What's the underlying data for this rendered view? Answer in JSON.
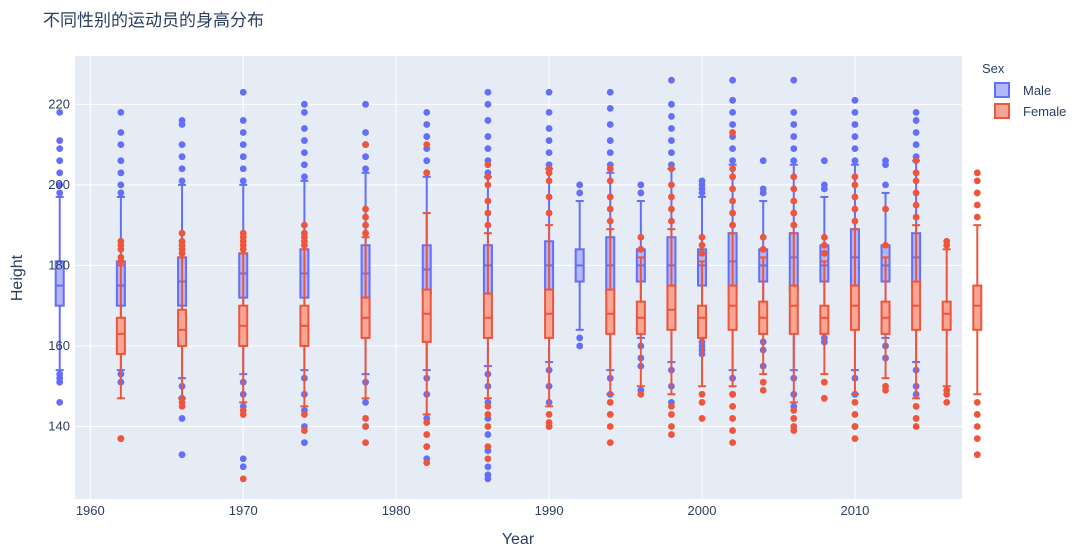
{
  "chart_data": {
    "type": "box",
    "title": "不同性别的运动员的身高分布",
    "xlabel": "Year",
    "ylabel": "Height",
    "xlim": [
      1959,
      2017
    ],
    "ylim": [
      122,
      232
    ],
    "x_ticks": [
      1960,
      1970,
      1980,
      1990,
      2000,
      2010
    ],
    "y_ticks": [
      140,
      160,
      180,
      200,
      220
    ],
    "grid": true,
    "legend_title": "Sex",
    "legend_position": "top-right",
    "series": [
      {
        "name": "Male",
        "color": "#636efa",
        "fill": "#b1b7f8",
        "boxes": [
          {
            "year": 1960,
            "q1": 170,
            "median": 175,
            "q3": 181,
            "lower": 154,
            "upper": 197,
            "outliers_low": [
              153,
              152,
              151,
              146
            ],
            "outliers_high": [
              198,
              200,
              203,
              206,
              209,
              211,
              218
            ]
          },
          {
            "year": 1964,
            "q1": 170,
            "median": 175,
            "q3": 181,
            "lower": 154,
            "upper": 197,
            "outliers_low": [
              153,
              151,
              137
            ],
            "outliers_high": [
              198,
              200,
              203,
              206,
              210,
              213,
              218
            ]
          },
          {
            "year": 1968,
            "q1": 170,
            "median": 176,
            "q3": 182,
            "lower": 152,
            "upper": 200,
            "outliers_low": [
              150,
              147,
              142,
              133
            ],
            "outliers_high": [
              201,
              204,
              207,
              210,
              215,
              216
            ]
          },
          {
            "year": 1972,
            "q1": 172,
            "median": 178,
            "q3": 183,
            "lower": 153,
            "upper": 200,
            "outliers_low": [
              151,
              148,
              145,
              132,
              130
            ],
            "outliers_high": [
              201,
              204,
              207,
              210,
              213,
              216,
              223
            ]
          },
          {
            "year": 1976,
            "q1": 172,
            "median": 178,
            "q3": 184,
            "lower": 154,
            "upper": 201,
            "outliers_low": [
              152,
              148,
              144,
              140,
              136
            ],
            "outliers_high": [
              202,
              205,
              208,
              211,
              214,
              218,
              220
            ]
          },
          {
            "year": 1980,
            "q1": 172,
            "median": 178,
            "q3": 185,
            "lower": 153,
            "upper": 203,
            "outliers_low": [
              151,
              146,
              140
            ],
            "outliers_high": [
              204,
              207,
              210,
              213,
              220
            ]
          },
          {
            "year": 1984,
            "q1": 173,
            "median": 179,
            "q3": 185,
            "lower": 154,
            "upper": 202,
            "outliers_low": [
              152,
              148,
              142,
              135,
              132
            ],
            "outliers_high": [
              203,
              206,
              209,
              212,
              215,
              218
            ]
          },
          {
            "year": 1988,
            "q1": 173,
            "median": 180,
            "q3": 185,
            "lower": 155,
            "upper": 202,
            "outliers_low": [
              153,
              150,
              146,
              142,
              138,
              134,
              130,
              128,
              127
            ],
            "outliers_high": [
              203,
              206,
              209,
              212,
              216,
              220,
              223
            ]
          },
          {
            "year": 1992,
            "q1": 174,
            "median": 180,
            "q3": 186,
            "lower": 156,
            "upper": 204,
            "outliers_low": [
              154,
              150,
              146,
              140
            ],
            "outliers_high": [
              205,
              208,
              211,
              214,
              218,
              223
            ]
          },
          {
            "year": 1994,
            "q1": 176,
            "median": 180,
            "q3": 184,
            "lower": 164,
            "upper": 196,
            "outliers_low": [
              162,
              160
            ],
            "outliers_high": [
              198,
              200
            ]
          },
          {
            "year": 1996,
            "q1": 173,
            "median": 180,
            "q3": 187,
            "lower": 154,
            "upper": 203,
            "outliers_low": [
              152,
              148
            ],
            "outliers_high": [
              205,
              208,
              211,
              215,
              219,
              223
            ]
          },
          {
            "year": 1998,
            "q1": 176,
            "median": 180,
            "q3": 184,
            "lower": 162,
            "upper": 196,
            "outliers_low": [
              160,
              157,
              155,
              149
            ],
            "outliers_high": [
              198,
              200
            ]
          },
          {
            "year": 2000,
            "q1": 174,
            "median": 180,
            "q3": 187,
            "lower": 156,
            "upper": 204,
            "outliers_low": [
              154,
              150,
              146
            ],
            "outliers_high": [
              205,
              208,
              211,
              214,
              217,
              220,
              226
            ]
          },
          {
            "year": 2002,
            "q1": 175,
            "median": 180,
            "q3": 184,
            "lower": 162,
            "upper": 197,
            "outliers_low": [
              161,
              160,
              159,
              158
            ],
            "outliers_high": [
              198,
              199,
              200,
              201
            ]
          },
          {
            "year": 2004,
            "q1": 174,
            "median": 181,
            "q3": 188,
            "lower": 154,
            "upper": 205,
            "outliers_low": [
              152,
              148
            ],
            "outliers_high": [
              206,
              209,
              212,
              215,
              218,
              221,
              226
            ]
          },
          {
            "year": 2006,
            "q1": 176,
            "median": 180,
            "q3": 184,
            "lower": 163,
            "upper": 196,
            "outliers_low": [
              161,
              159,
              155
            ],
            "outliers_high": [
              198,
              199,
              206
            ]
          },
          {
            "year": 2008,
            "q1": 174,
            "median": 182,
            "q3": 188,
            "lower": 154,
            "upper": 205,
            "outliers_low": [
              152,
              148,
              145
            ],
            "outliers_high": [
              206,
              209,
              212,
              215,
              218,
              226
            ]
          },
          {
            "year": 2010,
            "q1": 176,
            "median": 180,
            "q3": 185,
            "lower": 164,
            "upper": 197,
            "outliers_low": [
              162,
              161
            ],
            "outliers_high": [
              199,
              200,
              206
            ]
          },
          {
            "year": 2012,
            "q1": 175,
            "median": 182,
            "q3": 189,
            "lower": 154,
            "upper": 205,
            "outliers_low": [
              152,
              148,
              140
            ],
            "outliers_high": [
              206,
              209,
              212,
              215,
              218,
              221
            ]
          },
          {
            "year": 2014,
            "q1": 176,
            "median": 180,
            "q3": 185,
            "lower": 162,
            "upper": 198,
            "outliers_low": [
              160,
              157
            ],
            "outliers_high": [
              200,
              205,
              206
            ]
          },
          {
            "year": 2016,
            "q1": 175,
            "median": 182,
            "q3": 188,
            "lower": 156,
            "upper": 206,
            "outliers_low": [
              154,
              150,
              148
            ],
            "outliers_high": [
              207,
              210,
              213,
              216,
              218
            ]
          }
        ]
      },
      {
        "name": "Female",
        "color": "#ef553b",
        "fill": "#f7a595",
        "boxes": [
          {
            "year": 1960,
            "q1": 158,
            "median": 163,
            "q3": 167,
            "lower": 147,
            "upper": 180,
            "outliers_low": [
              137
            ],
            "outliers_high": [
              181,
              182,
              184,
              185,
              186
            ]
          },
          {
            "year": 1964,
            "q1": 160,
            "median": 164,
            "q3": 169,
            "lower": 147,
            "upper": 182,
            "outliers_low": [
              146,
              145
            ],
            "outliers_high": [
              183,
              184,
              185,
              186,
              188
            ]
          },
          {
            "year": 1968,
            "q1": 160,
            "median": 165,
            "q3": 170,
            "lower": 146,
            "upper": 183,
            "outliers_low": [
              144,
              143,
              127
            ],
            "outliers_high": [
              184,
              185,
              186,
              187,
              188
            ]
          },
          {
            "year": 1972,
            "q1": 160,
            "median": 165,
            "q3": 170,
            "lower": 145,
            "upper": 184,
            "outliers_low": [
              143,
              139
            ],
            "outliers_high": [
              185,
              186,
              187,
              188,
              190
            ]
          },
          {
            "year": 1976,
            "q1": 162,
            "median": 167,
            "q3": 172,
            "lower": 147,
            "upper": 187,
            "outliers_low": [
              142,
              140,
              136
            ],
            "outliers_high": [
              188,
              190,
              192,
              194,
              210
            ]
          },
          {
            "year": 1980,
            "q1": 161,
            "median": 168,
            "q3": 174,
            "lower": 143,
            "upper": 193,
            "outliers_low": [
              141,
              138,
              135,
              131
            ],
            "outliers_high": [
              203,
              210
            ]
          },
          {
            "year": 1984,
            "q1": 162,
            "median": 167,
            "q3": 173,
            "lower": 147,
            "upper": 188,
            "outliers_low": [
              145,
              143,
              140,
              135,
              132
            ],
            "outliers_high": [
              190,
              193,
              196,
              200,
              202,
              205
            ]
          },
          {
            "year": 1988,
            "q1": 162,
            "median": 168,
            "q3": 174,
            "lower": 145,
            "upper": 190,
            "outliers_low": [
              143,
              141,
              140
            ],
            "outliers_high": [
              193,
              197,
              201,
              203,
              204
            ]
          },
          {
            "year": 1992,
            "q1": 163,
            "median": 168,
            "q3": 174,
            "lower": 148,
            "upper": 189,
            "outliers_low": [
              146,
              143,
              140,
              136
            ],
            "outliers_high": [
              191,
              194,
              197,
              201,
              204
            ]
          },
          {
            "year": 1994,
            "q1": 163,
            "median": 167,
            "q3": 171,
            "lower": 150,
            "upper": 182,
            "outliers_low": [
              148
            ],
            "outliers_high": [
              184,
              187
            ]
          },
          {
            "year": 1996,
            "q1": 164,
            "median": 169,
            "q3": 175,
            "lower": 148,
            "upper": 189,
            "outliers_low": [
              145,
              143,
              140,
              138
            ],
            "outliers_high": [
              191,
              194,
              197,
              200,
              204
            ]
          },
          {
            "year": 1998,
            "q1": 162,
            "median": 167,
            "q3": 170,
            "lower": 150,
            "upper": 181,
            "outliers_low": [
              148,
              146,
              142
            ],
            "outliers_high": [
              183,
              185,
              187
            ]
          },
          {
            "year": 2000,
            "q1": 164,
            "median": 170,
            "q3": 175,
            "lower": 150,
            "upper": 188,
            "outliers_low": [
              148,
              145,
              142,
              139,
              136
            ],
            "outliers_high": [
              190,
              193,
              196,
              199,
              202,
              204,
              213
            ]
          },
          {
            "year": 2002,
            "q1": 163,
            "median": 167,
            "q3": 171,
            "lower": 153,
            "upper": 182,
            "outliers_low": [
              151,
              149
            ],
            "outliers_high": [
              184,
              187
            ]
          },
          {
            "year": 2004,
            "q1": 163,
            "median": 170,
            "q3": 175,
            "lower": 146,
            "upper": 188,
            "outliers_low": [
              144,
              142,
              140,
              139
            ],
            "outliers_high": [
              190,
              193,
              196,
              199,
              202
            ]
          },
          {
            "year": 2006,
            "q1": 163,
            "median": 167,
            "q3": 170,
            "lower": 153,
            "upper": 181,
            "outliers_low": [
              151,
              147
            ],
            "outliers_high": [
              183,
              185,
              187
            ]
          },
          {
            "year": 2008,
            "q1": 164,
            "median": 170,
            "q3": 175,
            "lower": 148,
            "upper": 189,
            "outliers_low": [
              146,
              143,
              140,
              137
            ],
            "outliers_high": [
              191,
              194,
              197,
              200,
              202
            ]
          },
          {
            "year": 2010,
            "q1": 163,
            "median": 167,
            "q3": 171,
            "lower": 152,
            "upper": 182,
            "outliers_low": [
              150,
              149
            ],
            "outliers_high": [
              185,
              194
            ]
          },
          {
            "year": 2012,
            "q1": 164,
            "median": 170,
            "q3": 176,
            "lower": 147,
            "upper": 190,
            "outliers_low": [
              145,
              142,
              140
            ],
            "outliers_high": [
              192,
              195,
              198,
              201,
              203,
              206
            ]
          },
          {
            "year": 2014,
            "q1": 164,
            "median": 168,
            "q3": 171,
            "lower": 150,
            "upper": 184,
            "outliers_low": [
              149,
              148,
              146
            ],
            "outliers_high": [
              185,
              186
            ]
          },
          {
            "year": 2016,
            "q1": 164,
            "median": 170,
            "q3": 175,
            "lower": 148,
            "upper": 190,
            "outliers_low": [
              146,
              143,
              140,
              137,
              133
            ],
            "outliers_high": [
              192,
              195,
              198,
              201,
              203
            ]
          }
        ]
      }
    ]
  }
}
